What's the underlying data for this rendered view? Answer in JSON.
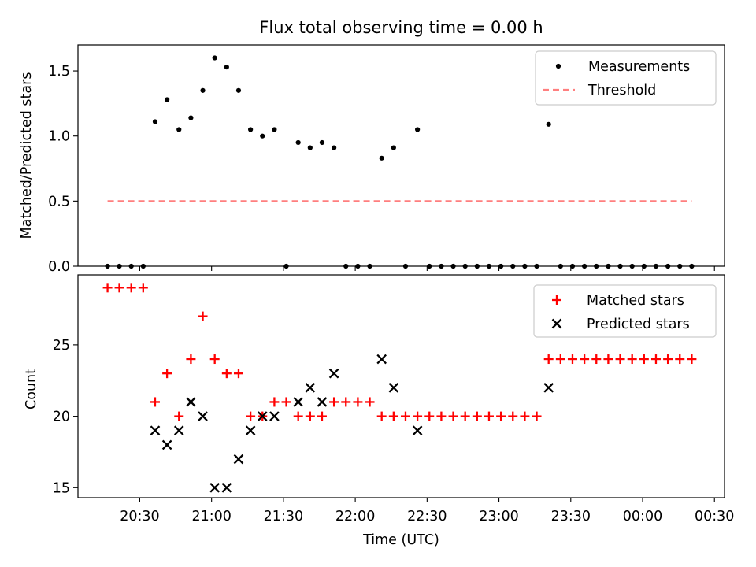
{
  "chart_data": {
    "title": "Flux total observing time = 0.00 h",
    "xlabel": "Time (UTC)",
    "x_tick_labels": [
      "20:30",
      "21:00",
      "21:30",
      "22:00",
      "22:30",
      "23:00",
      "23:30",
      "00:00",
      "00:30"
    ],
    "x_ticks_hours_since_2030": [
      0,
      0.5,
      1,
      1.5,
      2,
      2.5,
      3,
      3.5,
      4
    ],
    "xlim_hours_since_2030": [
      -0.43,
      4.07
    ],
    "sample_times_hours_since_2030": [
      -0.224,
      -0.142,
      -0.059,
      0.024,
      0.107,
      0.19,
      0.273,
      0.356,
      0.439,
      0.522,
      0.605,
      0.688,
      0.771,
      0.854,
      0.937,
      1.02,
      1.103,
      1.186,
      1.269,
      1.352,
      1.435,
      1.518,
      1.601,
      1.684,
      1.767,
      1.85,
      1.933,
      2.016,
      2.099,
      2.182,
      2.265,
      2.348,
      2.431,
      2.514,
      2.597,
      2.68,
      2.763,
      2.846,
      2.929,
      3.012,
      3.095,
      3.178,
      3.261,
      3.344,
      3.427,
      3.51,
      3.593,
      3.676,
      3.759,
      3.842
    ],
    "panels": [
      {
        "type": "scatter",
        "ylabel": "Matched/Predicted stars",
        "ylim": [
          0,
          1.7
        ],
        "y_ticks": [
          0.0,
          0.5,
          1.0,
          1.5
        ],
        "y_tick_labels": [
          "0.0",
          "0.5",
          "1.0",
          "1.5"
        ],
        "legend_position": "top-right",
        "series": [
          {
            "name": "Measurements",
            "marker": "dot",
            "color": "#000000",
            "values": [
              0,
              0,
              0,
              0,
              1.11,
              1.28,
              1.05,
              1.14,
              1.35,
              1.6,
              1.53,
              1.35,
              1.05,
              1.0,
              1.05,
              0,
              0.95,
              0.91,
              0.95,
              0.91,
              0,
              0,
              0,
              0.83,
              0.91,
              0,
              1.05,
              0,
              0,
              0,
              0,
              0,
              0,
              0,
              0,
              0,
              0,
              1.09,
              0,
              0,
              0,
              0,
              0,
              0,
              0,
              0,
              0,
              0,
              0,
              0
            ]
          },
          {
            "name": "Threshold",
            "marker": "dashed-line",
            "color": "#ff7f7f",
            "x_range_hours_since_2030": [
              -0.224,
              3.842
            ],
            "value": 0.5
          }
        ]
      },
      {
        "type": "scatter",
        "ylabel": "Count",
        "ylim": [
          14.3,
          29.9
        ],
        "y_ticks": [
          15,
          20,
          25
        ],
        "y_tick_labels": [
          "15",
          "20",
          "25"
        ],
        "legend_position": "top-right",
        "series": [
          {
            "name": "Matched stars",
            "marker": "plus",
            "color": "#ff0000",
            "values": [
              29,
              29,
              29,
              29,
              21,
              23,
              20,
              24,
              27,
              24,
              23,
              23,
              20,
              20,
              21,
              21,
              20,
              20,
              20,
              21,
              21,
              21,
              21,
              20,
              20,
              20,
              20,
              20,
              20,
              20,
              20,
              20,
              20,
              20,
              20,
              20,
              20,
              24,
              24,
              24,
              24,
              24,
              24,
              24,
              24,
              24,
              24,
              24,
              24,
              24
            ]
          },
          {
            "name": "Predicted stars",
            "marker": "x",
            "color": "#000000",
            "values": [
              null,
              null,
              null,
              null,
              19,
              18,
              19,
              21,
              20,
              15,
              15,
              17,
              19,
              20,
              20,
              null,
              21,
              22,
              21,
              23,
              null,
              null,
              null,
              24,
              22,
              null,
              19,
              null,
              null,
              null,
              null,
              null,
              null,
              null,
              null,
              null,
              null,
              22,
              null,
              null,
              null,
              null,
              null,
              null,
              null,
              null,
              null,
              null,
              null,
              null
            ]
          }
        ]
      }
    ]
  }
}
